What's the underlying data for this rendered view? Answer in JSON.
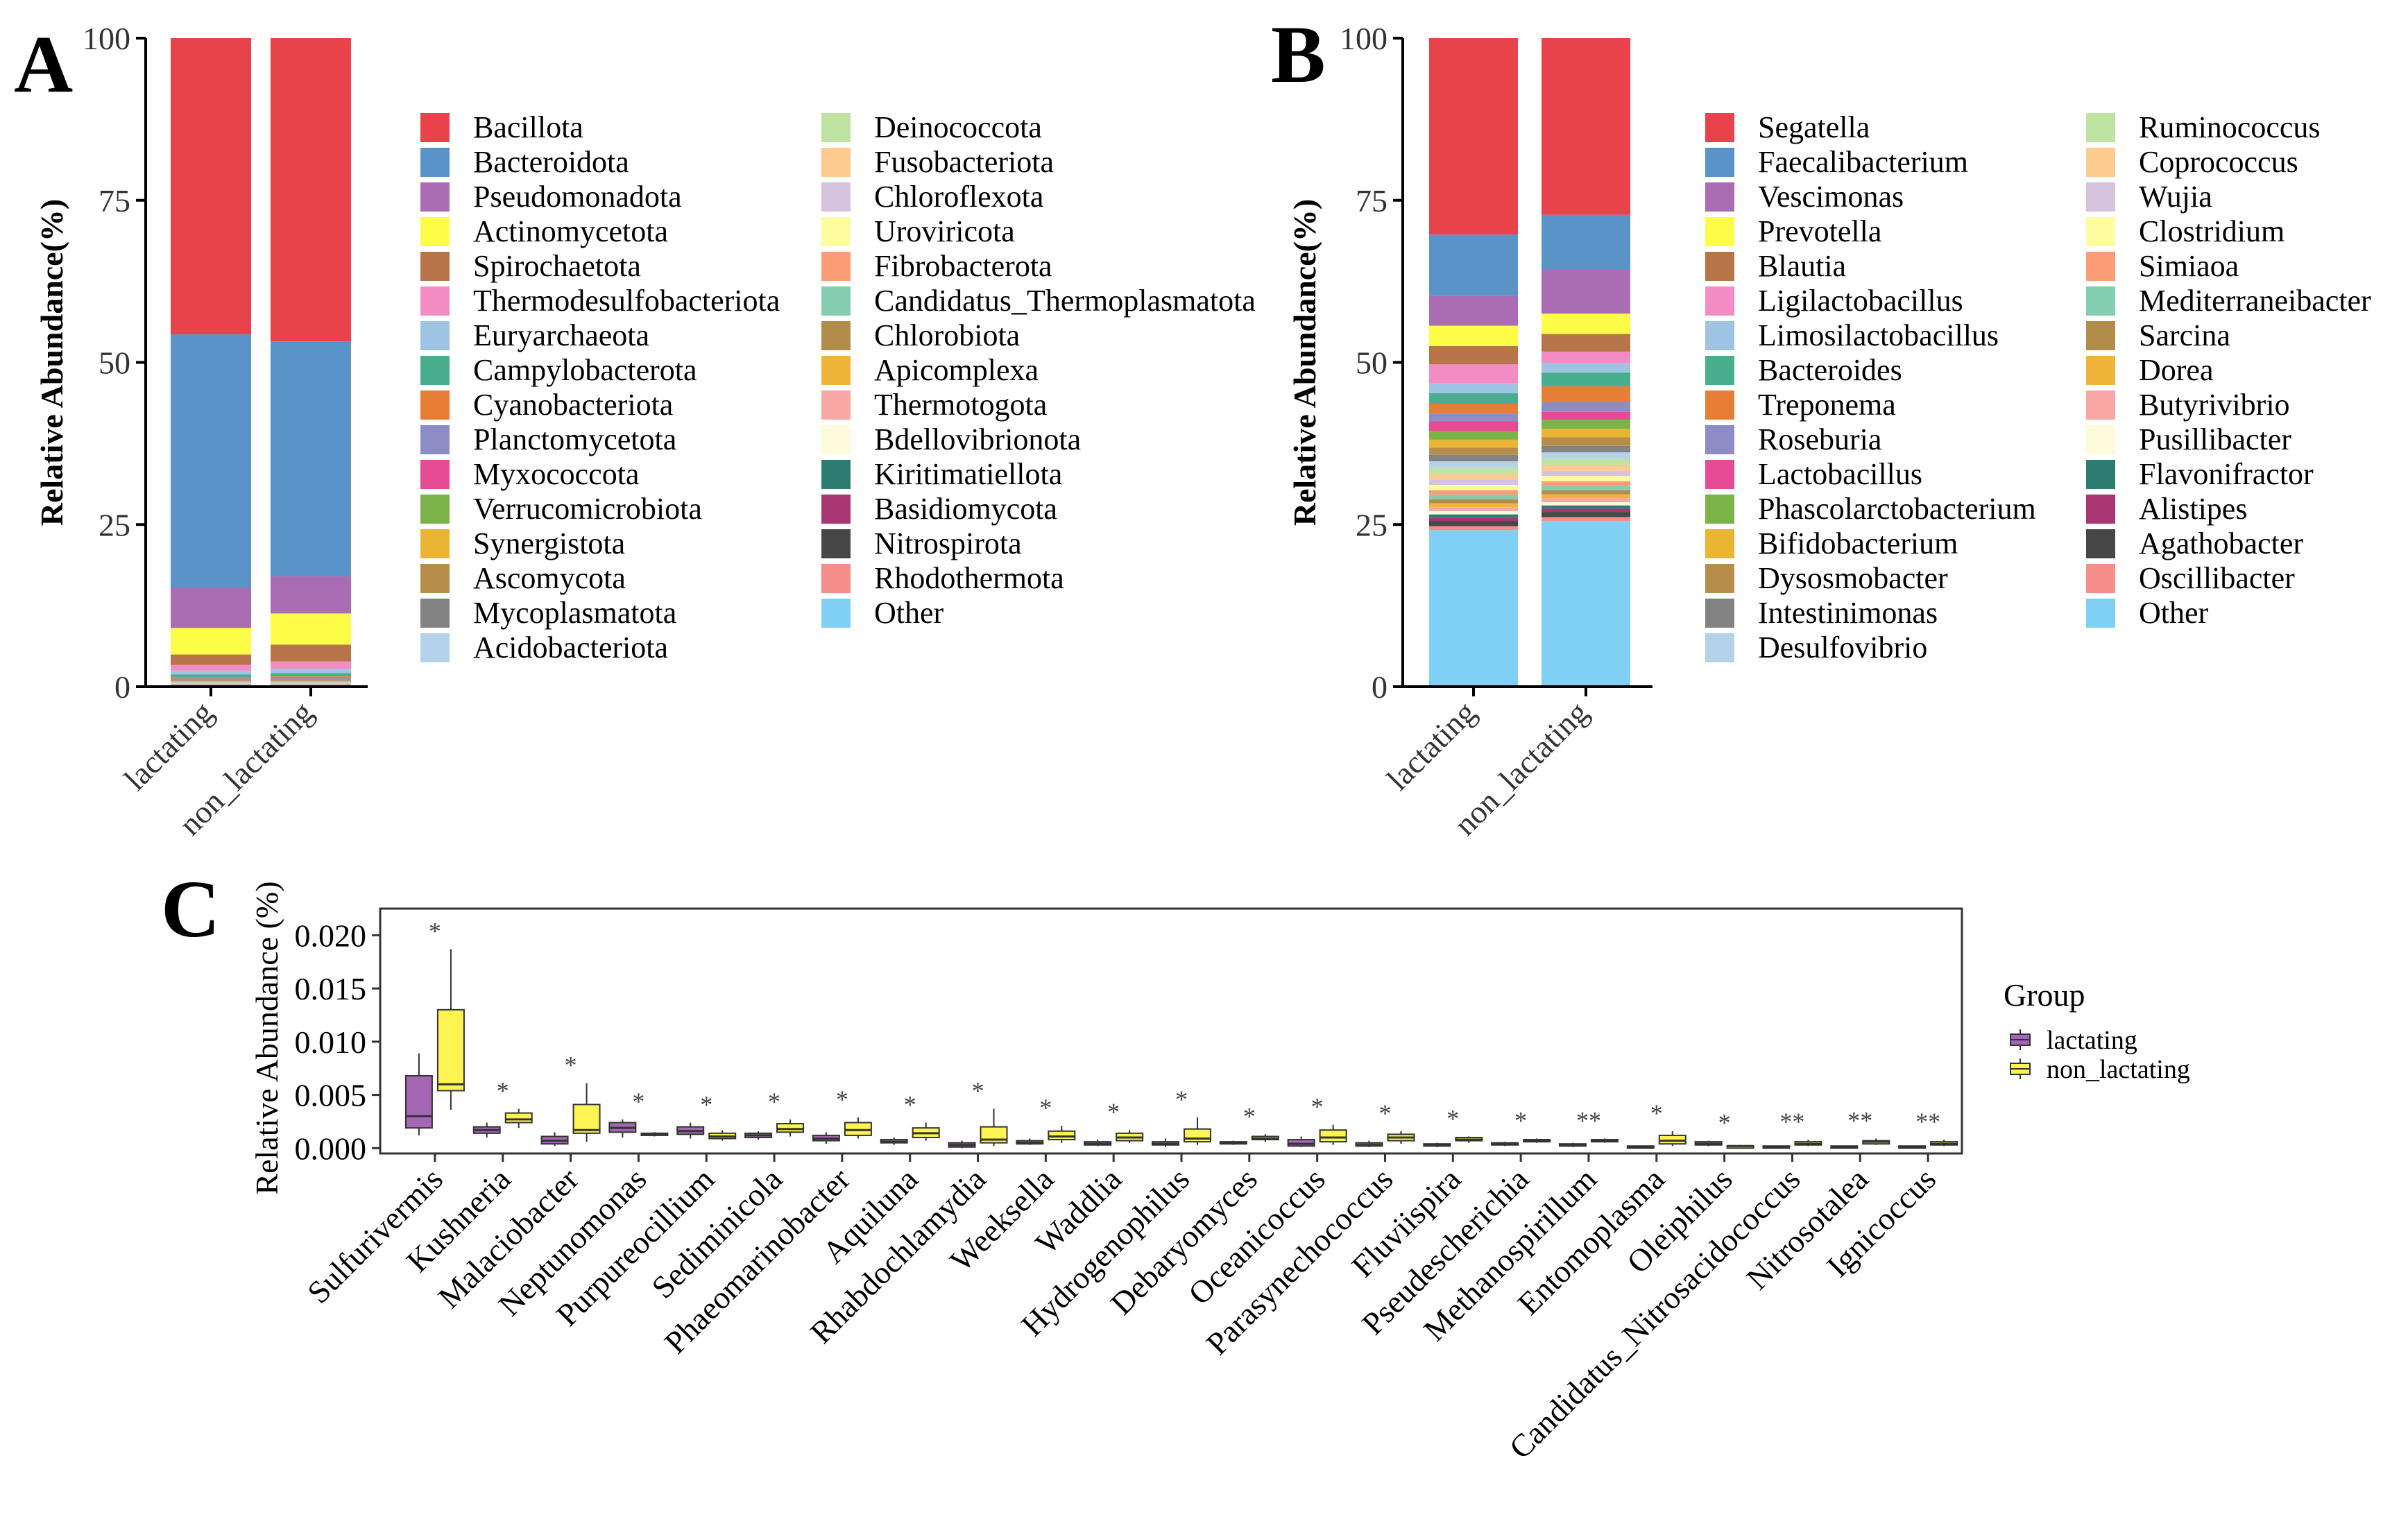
{
  "panel_labels": [
    "A",
    "B",
    "C"
  ],
  "colors": {
    "palette": [
      "#e8434a",
      "#5a93c7",
      "#aa6db4",
      "#fdfd48",
      "#b8754a",
      "#f48cc4",
      "#9fc3e3",
      "#49ae8d",
      "#e77e36",
      "#8c8dc4",
      "#e74b94",
      "#7bb348",
      "#eab434",
      "#b78d4a",
      "#838383",
      "#b4d3ea",
      "#bfe4a2",
      "#fdcb8d",
      "#d6c3e0",
      "#fdfda0",
      "#fa9d77",
      "#84cdb1",
      "#b28c4a",
      "#eeb53a",
      "#f7a8a4",
      "#fdfbdb",
      "#2e7b72",
      "#a83673",
      "#474747",
      "#f58d8b",
      "#80cff4"
    ],
    "lactating": "#a566b3",
    "non_lactating": "#fdf451",
    "axis": "#000000"
  },
  "chart_data": [
    {
      "id": "A",
      "type": "bar",
      "stacked": true,
      "ylabel": "Relative Abundance(%)",
      "ylim": [
        0,
        100
      ],
      "yticks": [
        "0",
        "25",
        "50",
        "75",
        "100"
      ],
      "categories": [
        "lactating",
        "non_lactating"
      ],
      "series": [
        {
          "name": "Bacillota",
          "values": [
            45.8,
            46.7
          ]
        },
        {
          "name": "Bacteroidota",
          "values": [
            39.2,
            36.2
          ]
        },
        {
          "name": "Pseudomonadota",
          "values": [
            6.2,
            5.7
          ]
        },
        {
          "name": "Actinomycetota",
          "values": [
            4.1,
            4.8
          ]
        },
        {
          "name": "Spirochaetota",
          "values": [
            1.6,
            2.6
          ]
        },
        {
          "name": "Thermodesulfobacteriota",
          "values": [
            0.9,
            1.1
          ]
        },
        {
          "name": "Euryarchaeota",
          "values": [
            0.6,
            0.7
          ]
        },
        {
          "name": "Campylobacterota",
          "values": [
            0.4,
            0.5
          ]
        },
        {
          "name": "Cyanobacteriota",
          "values": [
            0.2,
            0.3
          ]
        },
        {
          "name": "Planctomycetota",
          "values": [
            0.2,
            0.2
          ]
        },
        {
          "name": "Myxococcota",
          "values": [
            0.1,
            0.1
          ]
        },
        {
          "name": "Verrucomicrobiota",
          "values": [
            0.1,
            0.1
          ]
        },
        {
          "name": "Synergistota",
          "values": [
            0.1,
            0.1
          ]
        },
        {
          "name": "Ascomycota",
          "values": [
            0.05,
            0.05
          ]
        },
        {
          "name": "Mycoplasmatota",
          "values": [
            0.05,
            0.05
          ]
        },
        {
          "name": "Acidobacteriota",
          "values": [
            0.05,
            0.05
          ]
        },
        {
          "name": "Deinococcota",
          "values": [
            0.03,
            0.03
          ]
        },
        {
          "name": "Fusobacteriota",
          "values": [
            0.03,
            0.03
          ]
        },
        {
          "name": "Chloroflexota",
          "values": [
            0.03,
            0.03
          ]
        },
        {
          "name": "Uroviricota",
          "values": [
            0.03,
            0.03
          ]
        },
        {
          "name": "Fibrobacterota",
          "values": [
            0.03,
            0.03
          ]
        },
        {
          "name": "Candidatus_Thermoplasmatota",
          "values": [
            0.02,
            0.02
          ]
        },
        {
          "name": "Chlorobiota",
          "values": [
            0.02,
            0.02
          ]
        },
        {
          "name": "Apicomplexa",
          "values": [
            0.02,
            0.02
          ]
        },
        {
          "name": "Thermotogota",
          "values": [
            0.02,
            0.02
          ]
        },
        {
          "name": "Bdellovibrionota",
          "values": [
            0.02,
            0.02
          ]
        },
        {
          "name": "Kiritimatiellota",
          "values": [
            0.02,
            0.02
          ]
        },
        {
          "name": "Basidiomycota",
          "values": [
            0.02,
            0.02
          ]
        },
        {
          "name": "Nitrospirota",
          "values": [
            0.02,
            0.02
          ]
        },
        {
          "name": "Rhodothermota",
          "values": [
            0.02,
            0.02
          ]
        },
        {
          "name": "Other",
          "values": [
            0.3,
            0.3
          ]
        }
      ]
    },
    {
      "id": "B",
      "type": "bar",
      "stacked": true,
      "ylabel": "Relative Abundance(%)",
      "ylim": [
        0,
        100
      ],
      "yticks": [
        "0",
        "25",
        "50",
        "75",
        "100"
      ],
      "categories": [
        "lactating",
        "non_lactating"
      ],
      "series": [
        {
          "name": "Segatella",
          "values": [
            30.0,
            27.0
          ]
        },
        {
          "name": "Faecalibacterium",
          "values": [
            9.3,
            8.4
          ]
        },
        {
          "name": "Vescimonas",
          "values": [
            4.6,
            6.7
          ]
        },
        {
          "name": "Prevotella",
          "values": [
            3.1,
            3.1
          ]
        },
        {
          "name": "Blautia",
          "values": [
            2.8,
            2.7
          ]
        },
        {
          "name": "Ligilactobacillus",
          "values": [
            2.9,
            1.7
          ]
        },
        {
          "name": "Limosilactobacillus",
          "values": [
            1.5,
            1.5
          ]
        },
        {
          "name": "Bacteroides",
          "values": [
            1.6,
            2.1
          ]
        },
        {
          "name": "Treponema",
          "values": [
            1.5,
            2.4
          ]
        },
        {
          "name": "Roseburia",
          "values": [
            1.2,
            1.5
          ]
        },
        {
          "name": "Lactobacillus",
          "values": [
            1.5,
            1.2
          ]
        },
        {
          "name": "Phascolarctobacterium",
          "values": [
            1.3,
            1.4
          ]
        },
        {
          "name": "Bifidobacterium",
          "values": [
            1.2,
            1.3
          ]
        },
        {
          "name": "Dysosmobacter",
          "values": [
            1.1,
            1.3
          ]
        },
        {
          "name": "Intestinimonas",
          "values": [
            1.0,
            1.0
          ]
        },
        {
          "name": "Desulfovibrio",
          "values": [
            1.0,
            1.0
          ]
        },
        {
          "name": "Ruminococcus",
          "values": [
            0.9,
            0.9
          ]
        },
        {
          "name": "Coprococcus",
          "values": [
            0.9,
            0.9
          ]
        },
        {
          "name": "Wujia",
          "values": [
            0.8,
            0.8
          ]
        },
        {
          "name": "Clostridium",
          "values": [
            0.8,
            0.8
          ]
        },
        {
          "name": "Simiaoa",
          "values": [
            0.7,
            0.7
          ]
        },
        {
          "name": "Mediterraneibacter",
          "values": [
            0.7,
            0.7
          ]
        },
        {
          "name": "Sarcina",
          "values": [
            0.6,
            0.6
          ]
        },
        {
          "name": "Dorea",
          "values": [
            0.6,
            0.6
          ]
        },
        {
          "name": "Butyrivibrio",
          "values": [
            0.6,
            0.6
          ]
        },
        {
          "name": "Pusillibacter",
          "values": [
            0.5,
            0.5
          ]
        },
        {
          "name": "Flavonifractor",
          "values": [
            0.5,
            0.5
          ]
        },
        {
          "name": "Alistipes",
          "values": [
            0.5,
            0.5
          ]
        },
        {
          "name": "Agathobacter",
          "values": [
            0.8,
            0.8
          ]
        },
        {
          "name": "Oscillibacter",
          "values": [
            0.6,
            0.6
          ]
        },
        {
          "name": "Other",
          "values": [
            23.9,
            25.3
          ]
        }
      ]
    },
    {
      "id": "C",
      "type": "box",
      "ylabel": "Relative Abundance (%)",
      "ylim": [
        -0.0005,
        0.0225
      ],
      "yticks": [
        "0.000",
        "0.005",
        "0.010",
        "0.015",
        "0.020"
      ],
      "legend_title": "Group",
      "legend": [
        "lactating",
        "non_lactating"
      ],
      "genera": [
        {
          "name": "Sulfurivermis",
          "sig": "*",
          "lactating": [
            0.0012,
            0.0019,
            0.003,
            0.0068,
            0.0089
          ],
          "non_lactating": [
            0.0036,
            0.0054,
            0.006,
            0.013,
            0.0187
          ]
        },
        {
          "name": "Kushneria",
          "sig": "*",
          "lactating": [
            0.001,
            0.0014,
            0.0017,
            0.002,
            0.0024
          ],
          "non_lactating": [
            0.0019,
            0.0024,
            0.0027,
            0.0033,
            0.0037
          ]
        },
        {
          "name": "Malaciobacter",
          "sig": "*",
          "lactating": [
            0.0002,
            0.0004,
            0.0007,
            0.0011,
            0.0015
          ],
          "non_lactating": [
            0.0006,
            0.0014,
            0.0017,
            0.0041,
            0.0061
          ]
        },
        {
          "name": "Neptunomonas",
          "sig": "*",
          "lactating": [
            0.001,
            0.0015,
            0.0019,
            0.0024,
            0.0027
          ],
          "non_lactating": [
            0.0011,
            0.0012,
            0.0013,
            0.0014,
            0.0015
          ]
        },
        {
          "name": "Purpureocillium",
          "sig": "*",
          "lactating": [
            0.0009,
            0.0013,
            0.0016,
            0.002,
            0.0024
          ],
          "non_lactating": [
            0.0007,
            0.0009,
            0.0011,
            0.0014,
            0.0017
          ]
        },
        {
          "name": "Sediminicola",
          "sig": "*",
          "lactating": [
            0.0008,
            0.001,
            0.0012,
            0.0014,
            0.0016
          ],
          "non_lactating": [
            0.0011,
            0.0015,
            0.0018,
            0.0023,
            0.0027
          ]
        },
        {
          "name": "Phaeomarinobacter",
          "sig": "*",
          "lactating": [
            0.0004,
            0.0007,
            0.0009,
            0.0012,
            0.0015
          ],
          "non_lactating": [
            0.0009,
            0.0012,
            0.0017,
            0.0024,
            0.0029
          ]
        },
        {
          "name": "Aquiluna",
          "sig": "*",
          "lactating": [
            0.0003,
            0.0005,
            0.0006,
            0.0008,
            0.001
          ],
          "non_lactating": [
            0.0007,
            0.001,
            0.0014,
            0.0019,
            0.0024
          ]
        },
        {
          "name": "Rhabdochlamydia",
          "sig": "*",
          "lactating": [
            0.0,
            0.0001,
            0.0003,
            0.0005,
            0.0007
          ],
          "non_lactating": [
            0.0002,
            0.0005,
            0.0008,
            0.002,
            0.0037
          ]
        },
        {
          "name": "Weeksella",
          "sig": "*",
          "lactating": [
            0.0003,
            0.0004,
            0.0005,
            0.0007,
            0.0009
          ],
          "non_lactating": [
            0.0005,
            0.0008,
            0.0011,
            0.0016,
            0.0021
          ]
        },
        {
          "name": "Waddlia",
          "sig": "*",
          "lactating": [
            0.0002,
            0.0003,
            0.0004,
            0.0006,
            0.0008
          ],
          "non_lactating": [
            0.0005,
            0.0007,
            0.001,
            0.0014,
            0.0017
          ]
        },
        {
          "name": "Hydrogenophilus",
          "sig": "*",
          "lactating": [
            0.0001,
            0.0003,
            0.0004,
            0.0006,
            0.0009
          ],
          "non_lactating": [
            0.0003,
            0.0006,
            0.0009,
            0.0018,
            0.0029
          ]
        },
        {
          "name": "Debaryomyces",
          "sig": "*",
          "lactating": [
            0.0003,
            0.0004,
            0.0005,
            0.0006,
            0.0007
          ],
          "non_lactating": [
            0.0006,
            0.0008,
            0.0009,
            0.0011,
            0.0013
          ]
        },
        {
          "name": "Oceanicoccus",
          "sig": "*",
          "lactating": [
            0.0001,
            0.0002,
            0.0004,
            0.0008,
            0.0011
          ],
          "non_lactating": [
            0.0003,
            0.0006,
            0.001,
            0.0017,
            0.0022
          ]
        },
        {
          "name": "Parasynechococcus",
          "sig": "*",
          "lactating": [
            0.0001,
            0.0002,
            0.0003,
            0.0005,
            0.0007
          ],
          "non_lactating": [
            0.0004,
            0.0007,
            0.001,
            0.0013,
            0.0016
          ]
        },
        {
          "name": "Fluviispira",
          "sig": "*",
          "lactating": [
            0.0001,
            0.0002,
            0.0003,
            0.0004,
            0.0005
          ],
          "non_lactating": [
            0.0005,
            0.0007,
            0.0008,
            0.001,
            0.0011
          ]
        },
        {
          "name": "Pseudescherichia",
          "sig": "*",
          "lactating": [
            0.0002,
            0.0003,
            0.0004,
            0.0005,
            0.0006
          ],
          "non_lactating": [
            0.0005,
            0.0006,
            0.0007,
            0.0008,
            0.0009
          ]
        },
        {
          "name": "Methanospirillum",
          "sig": "**",
          "lactating": [
            0.0001,
            0.0002,
            0.0003,
            0.0004,
            0.0005
          ],
          "non_lactating": [
            0.0005,
            0.0006,
            0.0007,
            0.0008,
            0.0009
          ]
        },
        {
          "name": "Entomoplasma",
          "sig": "*",
          "lactating": [
            0.0,
            0.0001,
            0.0001,
            0.0002,
            0.0002
          ],
          "non_lactating": [
            0.0002,
            0.0004,
            0.0007,
            0.0012,
            0.0016
          ]
        },
        {
          "name": "Oleiphilus",
          "sig": "*",
          "lactating": [
            0.0002,
            0.0003,
            0.0004,
            0.0006,
            0.0007
          ],
          "non_lactating": [
            0.0001,
            0.0001,
            0.0002,
            0.0002,
            0.0003
          ]
        },
        {
          "name": "Candidatus_Nitrosacidococcus",
          "sig": "**",
          "lactating": [
            0.0,
            0.0001,
            0.0001,
            0.0002,
            0.0002
          ],
          "non_lactating": [
            0.0002,
            0.0003,
            0.0004,
            0.0006,
            0.0008
          ]
        },
        {
          "name": "Nitrosotalea",
          "sig": "**",
          "lactating": [
            0.0,
            0.0001,
            0.0001,
            0.0002,
            0.0002
          ],
          "non_lactating": [
            0.0003,
            0.0004,
            0.0006,
            0.0007,
            0.0009
          ]
        },
        {
          "name": "Ignicoccus",
          "sig": "**",
          "lactating": [
            0.0,
            0.0001,
            0.0001,
            0.0002,
            0.0002
          ],
          "non_lactating": [
            0.0002,
            0.0003,
            0.0004,
            0.0006,
            0.0008
          ]
        }
      ]
    }
  ]
}
